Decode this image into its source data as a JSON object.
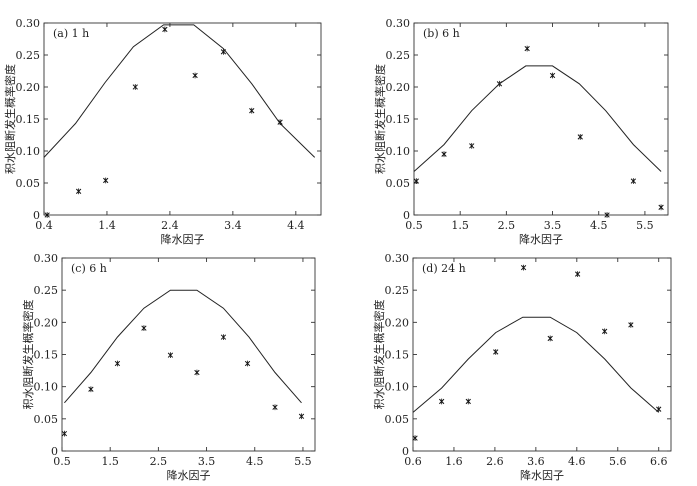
{
  "chart_data": [
    {
      "type": "scatter",
      "panel_label": "(a) 1 h",
      "xlabel": "降水因子",
      "ylabel": "积水阻断发生概率密度",
      "xlim": [
        0.4,
        4.8
      ],
      "ylim": [
        0,
        0.3
      ],
      "xticks": [
        0.4,
        1.4,
        2.4,
        3.4,
        4.4
      ],
      "xtick_labels": [
        "0.4",
        "1.4",
        "2.4",
        "3.4",
        "4.4"
      ],
      "yticks": [
        0,
        0.05,
        0.1,
        0.15,
        0.2,
        0.25,
        0.3
      ],
      "ytick_labels": [
        "0",
        "0.05",
        "0.10",
        "0.15",
        "0.20",
        "0.25",
        "0.30"
      ],
      "series": [
        {
          "kind": "scatter",
          "x": [
            0.45,
            0.95,
            1.38,
            1.85,
            2.32,
            2.8,
            3.25,
            3.7,
            4.15
          ],
          "y": [
            0.0,
            0.037,
            0.054,
            0.2,
            0.29,
            0.218,
            0.255,
            0.163,
            0.145
          ]
        },
        {
          "kind": "line",
          "x": [
            0.4,
            0.9,
            1.37,
            1.82,
            2.3,
            2.78,
            3.25,
            3.7,
            4.15,
            4.7
          ],
          "y": [
            0.09,
            0.143,
            0.207,
            0.263,
            0.297,
            0.297,
            0.26,
            0.205,
            0.143,
            0.09
          ]
        }
      ]
    },
    {
      "type": "scatter",
      "panel_label": "(b) 6 h",
      "xlabel": "降水因子",
      "ylabel": "积水阻断发生概率密度",
      "xlim": [
        0.5,
        6.0
      ],
      "ylim": [
        0,
        0.3
      ],
      "xticks": [
        0.5,
        1.5,
        2.5,
        3.5,
        4.5,
        5.5
      ],
      "xtick_labels": [
        "0.5",
        "1.5",
        "2.5",
        "3.5",
        "4.5",
        "5.5"
      ],
      "yticks": [
        0,
        0.05,
        0.1,
        0.15,
        0.2,
        0.25,
        0.3
      ],
      "ytick_labels": [
        "0",
        "0.05",
        "0.10",
        "0.15",
        "0.20",
        "0.25",
        "0.30"
      ],
      "series": [
        {
          "kind": "scatter",
          "x": [
            0.55,
            1.15,
            1.75,
            2.35,
            2.95,
            3.5,
            4.1,
            4.68,
            5.25,
            5.85
          ],
          "y": [
            0.053,
            0.095,
            0.108,
            0.205,
            0.26,
            0.218,
            0.122,
            0.0,
            0.053,
            0.012
          ]
        },
        {
          "kind": "line",
          "x": [
            0.5,
            1.15,
            1.75,
            2.35,
            2.92,
            3.5,
            4.08,
            4.65,
            5.25,
            5.85
          ],
          "y": [
            0.068,
            0.11,
            0.163,
            0.205,
            0.233,
            0.233,
            0.205,
            0.163,
            0.11,
            0.068
          ]
        }
      ]
    },
    {
      "type": "scatter",
      "panel_label": "(c) 6 h",
      "xlabel": "降水因子",
      "ylabel": "积水阻断发生概率密度",
      "xlim": [
        0.5,
        5.75
      ],
      "ylim": [
        0,
        0.3
      ],
      "xticks": [
        0.5,
        1.5,
        2.5,
        3.5,
        4.5,
        5.5
      ],
      "xtick_labels": [
        "0.5",
        "1.5",
        "2.5",
        "3.5",
        "4.5",
        "5.5"
      ],
      "yticks": [
        0,
        0.05,
        0.1,
        0.15,
        0.2,
        0.25,
        0.3
      ],
      "ytick_labels": [
        "0",
        "0.05",
        "0.10",
        "0.15",
        "0.20",
        "0.25",
        "0.30"
      ],
      "series": [
        {
          "kind": "scatter",
          "x": [
            0.55,
            1.1,
            1.65,
            2.2,
            2.75,
            3.3,
            3.85,
            4.35,
            4.92,
            5.47
          ],
          "y": [
            0.027,
            0.096,
            0.136,
            0.191,
            0.149,
            0.122,
            0.177,
            0.136,
            0.068,
            0.054
          ]
        },
        {
          "kind": "line",
          "x": [
            0.55,
            1.1,
            1.65,
            2.2,
            2.75,
            3.3,
            3.85,
            4.38,
            4.92,
            5.47
          ],
          "y": [
            0.075,
            0.122,
            0.177,
            0.222,
            0.25,
            0.25,
            0.222,
            0.177,
            0.122,
            0.075
          ]
        }
      ]
    },
    {
      "type": "scatter",
      "panel_label": "(d) 24 h",
      "xlabel": "降水因子",
      "ylabel": "积水阻断发生概率密度",
      "xlim": [
        0.6,
        6.9
      ],
      "ylim": [
        0,
        0.3
      ],
      "xticks": [
        0.6,
        1.6,
        2.6,
        3.6,
        4.6,
        5.6,
        6.6
      ],
      "xtick_labels": [
        "0.6",
        "1.6",
        "2.6",
        "3.6",
        "4.6",
        "5.6",
        "6.6"
      ],
      "yticks": [
        0,
        0.05,
        0.1,
        0.15,
        0.2,
        0.25,
        0.3
      ],
      "ytick_labels": [
        "0",
        "0.05",
        "0.10",
        "0.15",
        "0.20",
        "0.25",
        "0.30"
      ],
      "series": [
        {
          "kind": "scatter",
          "x": [
            0.65,
            1.3,
            1.95,
            2.62,
            3.3,
            3.95,
            4.62,
            5.28,
            5.92,
            6.6
          ],
          "y": [
            0.02,
            0.077,
            0.077,
            0.154,
            0.285,
            0.175,
            0.275,
            0.186,
            0.196,
            0.065
          ]
        },
        {
          "kind": "line",
          "x": [
            0.6,
            1.3,
            1.95,
            2.62,
            3.28,
            3.95,
            4.6,
            5.28,
            5.92,
            6.6
          ],
          "y": [
            0.06,
            0.098,
            0.143,
            0.184,
            0.208,
            0.208,
            0.184,
            0.143,
            0.098,
            0.06
          ]
        }
      ]
    }
  ]
}
